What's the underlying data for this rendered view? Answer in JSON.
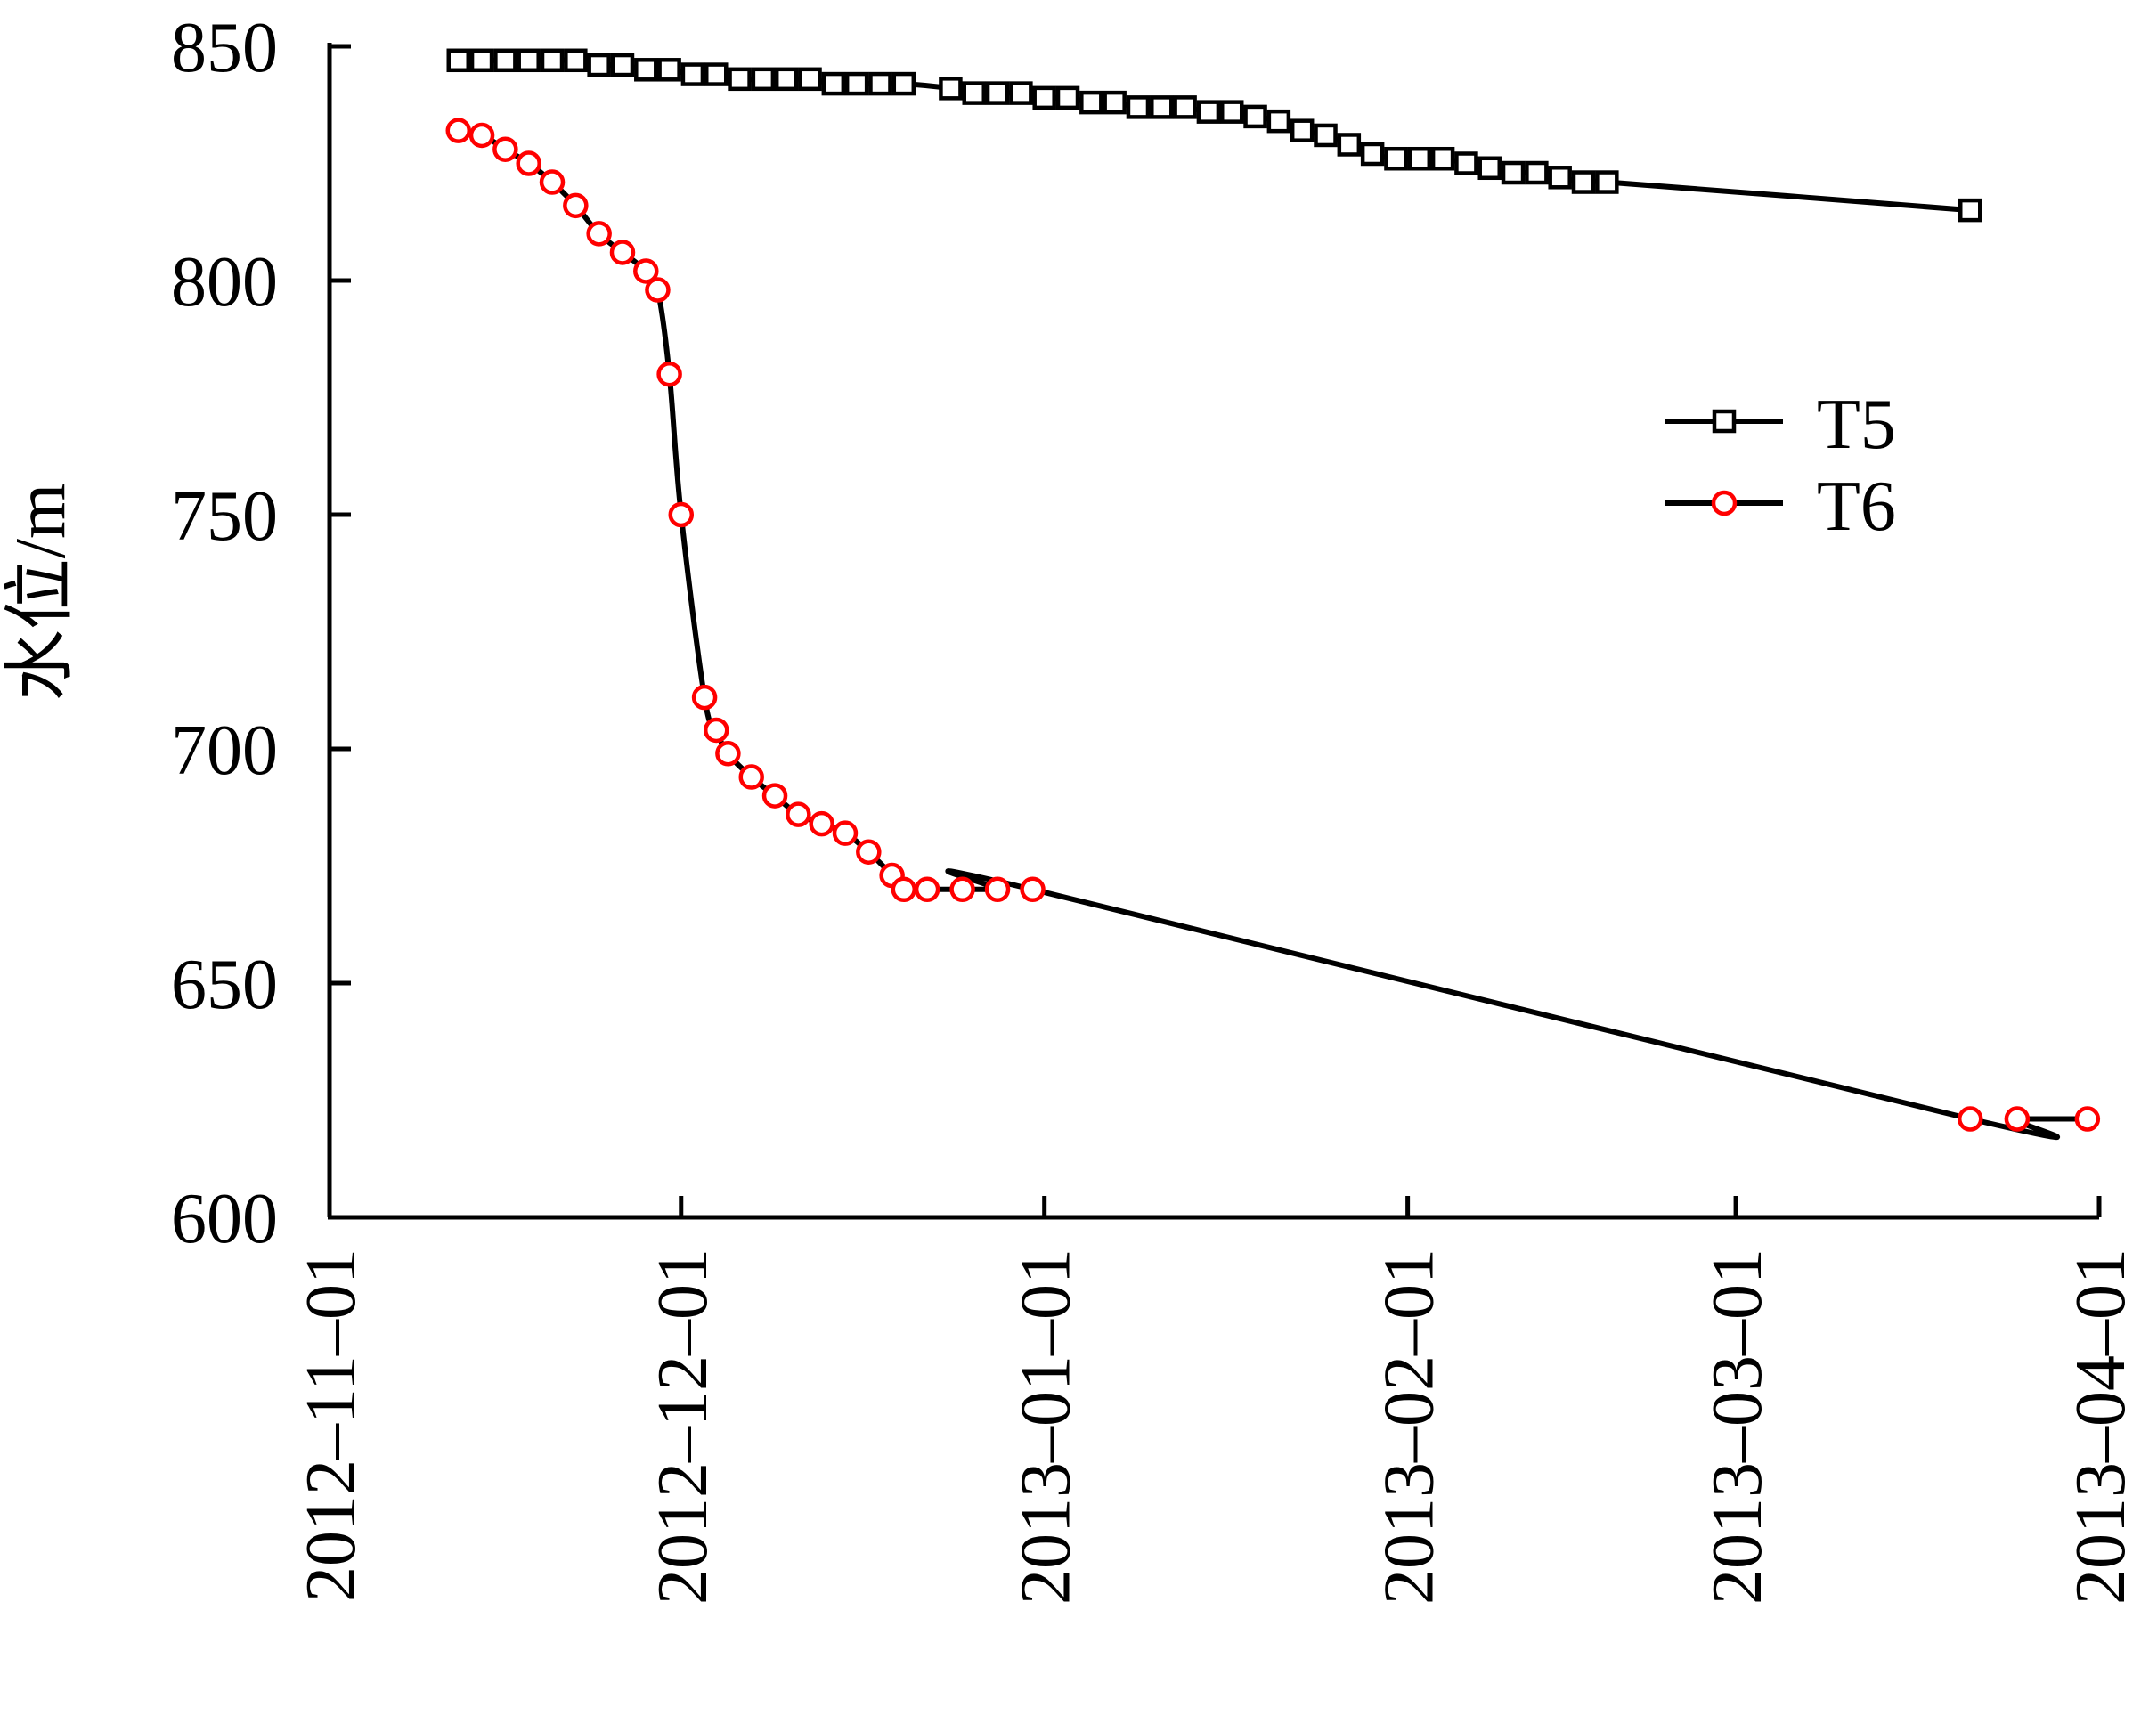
{
  "chart_data": {
    "type": "line",
    "title": "",
    "xlabel": "",
    "ylabel": "水位/m",
    "x_type": "date",
    "xlim": [
      "2012-11-01",
      "2013-04-01"
    ],
    "ylim": [
      600,
      850
    ],
    "x_ticks": [
      "2012-11-01",
      "2012-12-01",
      "2013-01-01",
      "2013-02-01",
      "2013-03-01",
      "2013-04-01"
    ],
    "y_ticks": [
      600,
      650,
      700,
      750,
      800,
      850
    ],
    "grid": false,
    "legend_position": "upper-right",
    "series": [
      {
        "name": "T5",
        "color": "#000000",
        "marker": "square",
        "line_color": "#000000",
        "points": [
          [
            "2012-11-12",
            847
          ],
          [
            "2012-11-14",
            847
          ],
          [
            "2012-11-16",
            847
          ],
          [
            "2012-11-18",
            847
          ],
          [
            "2012-11-20",
            847
          ],
          [
            "2012-11-22",
            847
          ],
          [
            "2012-11-24",
            846
          ],
          [
            "2012-11-26",
            846
          ],
          [
            "2012-11-28",
            845
          ],
          [
            "2012-11-30",
            845
          ],
          [
            "2012-12-02",
            844
          ],
          [
            "2012-12-04",
            844
          ],
          [
            "2012-12-06",
            843
          ],
          [
            "2012-12-08",
            843
          ],
          [
            "2012-12-10",
            843
          ],
          [
            "2012-12-12",
            843
          ],
          [
            "2012-12-14",
            842
          ],
          [
            "2012-12-16",
            842
          ],
          [
            "2012-12-18",
            842
          ],
          [
            "2012-12-20",
            842
          ],
          [
            "2012-12-24",
            841
          ],
          [
            "2012-12-26",
            840
          ],
          [
            "2012-12-28",
            840
          ],
          [
            "2012-12-30",
            840
          ],
          [
            "2013-01-01",
            839
          ],
          [
            "2013-01-03",
            839
          ],
          [
            "2013-01-05",
            838
          ],
          [
            "2013-01-07",
            838
          ],
          [
            "2013-01-09",
            837
          ],
          [
            "2013-01-11",
            837
          ],
          [
            "2013-01-13",
            837
          ],
          [
            "2013-01-15",
            836
          ],
          [
            "2013-01-17",
            836
          ],
          [
            "2013-01-19",
            835
          ],
          [
            "2013-01-21",
            834
          ],
          [
            "2013-01-23",
            832
          ],
          [
            "2013-01-25",
            831
          ],
          [
            "2013-01-27",
            829
          ],
          [
            "2013-01-29",
            827
          ],
          [
            "2013-01-31",
            826
          ],
          [
            "2013-02-02",
            826
          ],
          [
            "2013-02-04",
            826
          ],
          [
            "2013-02-06",
            825
          ],
          [
            "2013-02-08",
            824
          ],
          [
            "2013-02-10",
            823
          ],
          [
            "2013-02-12",
            823
          ],
          [
            "2013-02-14",
            822
          ],
          [
            "2013-02-16",
            821
          ],
          [
            "2013-02-18",
            821
          ],
          [
            "2013-03-21",
            815
          ]
        ]
      },
      {
        "name": "T6",
        "color": "#ff0000",
        "marker": "circle",
        "line_color": "#000000",
        "points": [
          [
            "2012-11-12",
            832
          ],
          [
            "2012-11-14",
            831
          ],
          [
            "2012-11-16",
            828
          ],
          [
            "2012-11-18",
            825
          ],
          [
            "2012-11-20",
            821
          ],
          [
            "2012-11-22",
            816
          ],
          [
            "2012-11-24",
            810
          ],
          [
            "2012-11-26",
            806
          ],
          [
            "2012-11-28",
            802
          ],
          [
            "2012-11-29",
            798
          ],
          [
            "2012-11-30",
            780
          ],
          [
            "2012-12-01",
            750
          ],
          [
            "2012-12-03",
            711
          ],
          [
            "2012-12-04",
            704
          ],
          [
            "2012-12-05",
            699
          ],
          [
            "2012-12-07",
            694
          ],
          [
            "2012-12-09",
            690
          ],
          [
            "2012-12-11",
            686
          ],
          [
            "2012-12-13",
            684
          ],
          [
            "2012-12-15",
            682
          ],
          [
            "2012-12-17",
            678
          ],
          [
            "2012-12-19",
            673
          ],
          [
            "2012-12-20",
            670
          ],
          [
            "2012-12-22",
            670
          ],
          [
            "2012-12-25",
            670
          ],
          [
            "2012-12-28",
            670
          ],
          [
            "2012-12-31",
            670
          ],
          [
            "2013-03-21",
            621
          ],
          [
            "2013-03-25",
            621
          ],
          [
            "2013-03-31",
            621
          ]
        ]
      }
    ]
  }
}
